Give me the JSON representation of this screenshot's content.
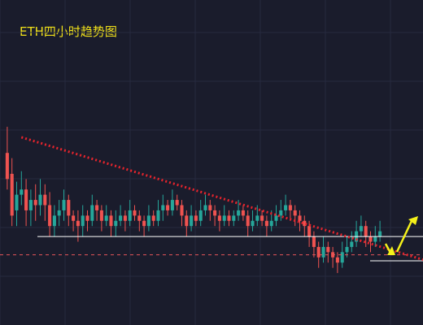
{
  "chart_data": {
    "type": "candlestick",
    "title": "ETH四小时趋势图",
    "xlabel": "",
    "ylabel": "",
    "grid": true,
    "colors": {
      "background": "#1a1c2c",
      "grid": "#262a3e",
      "up": "#26a69a",
      "down": "#ef5350",
      "trendline": "#e8242c",
      "level": "#ffffff",
      "dashed_level": "#e8555a",
      "arrow": "#f5f11a",
      "title": "#f2e21a"
    },
    "candles": [
      [
        0,
        290,
        280,
        300,
        276
      ],
      [
        1,
        282,
        266,
        288,
        262
      ],
      [
        2,
        268,
        274,
        279,
        262
      ],
      [
        3,
        274,
        276,
        283,
        270
      ],
      [
        4,
        276,
        268,
        280,
        262
      ],
      [
        5,
        268,
        272,
        276,
        262
      ],
      [
        6,
        272,
        270,
        278,
        264
      ],
      [
        7,
        270,
        274,
        280,
        266
      ],
      [
        8,
        274,
        270,
        278,
        264
      ],
      [
        9,
        270,
        262,
        275,
        258
      ],
      [
        10,
        262,
        266,
        270,
        258
      ],
      [
        11,
        266,
        268,
        272,
        262
      ],
      [
        12,
        268,
        272,
        276,
        264
      ],
      [
        13,
        272,
        266,
        274,
        262
      ],
      [
        14,
        266,
        264,
        268,
        260
      ],
      [
        15,
        264,
        262,
        268,
        256
      ],
      [
        16,
        262,
        266,
        270,
        258
      ],
      [
        17,
        266,
        264,
        268,
        260
      ],
      [
        18,
        264,
        270,
        274,
        262
      ],
      [
        19,
        270,
        268,
        272,
        264
      ],
      [
        20,
        268,
        264,
        270,
        260
      ],
      [
        21,
        264,
        266,
        270,
        262
      ],
      [
        22,
        266,
        262,
        268,
        258
      ],
      [
        23,
        262,
        264,
        268,
        258
      ],
      [
        24,
        264,
        266,
        270,
        262
      ],
      [
        25,
        266,
        264,
        268,
        260
      ],
      [
        26,
        264,
        268,
        272,
        262
      ],
      [
        27,
        268,
        266,
        270,
        264
      ],
      [
        28,
        266,
        264,
        268,
        260
      ],
      [
        29,
        264,
        262,
        266,
        258
      ],
      [
        30,
        262,
        266,
        270,
        260
      ],
      [
        31,
        266,
        264,
        268,
        262
      ],
      [
        32,
        264,
        268,
        272,
        262
      ],
      [
        33,
        268,
        270,
        274,
        264
      ],
      [
        34,
        270,
        268,
        272,
        266
      ],
      [
        35,
        268,
        272,
        276,
        266
      ],
      [
        36,
        272,
        270,
        274,
        268
      ],
      [
        37,
        270,
        266,
        272,
        262
      ],
      [
        38,
        266,
        262,
        268,
        258
      ],
      [
        39,
        262,
        266,
        270,
        260
      ],
      [
        40,
        266,
        264,
        268,
        262
      ],
      [
        41,
        264,
        268,
        272,
        262
      ],
      [
        42,
        268,
        270,
        274,
        266
      ],
      [
        43,
        270,
        268,
        272,
        264
      ],
      [
        44,
        268,
        266,
        270,
        262
      ],
      [
        45,
        266,
        264,
        268,
        260
      ],
      [
        46,
        264,
        266,
        270,
        262
      ],
      [
        47,
        266,
        264,
        268,
        262
      ],
      [
        48,
        264,
        266,
        268,
        262
      ],
      [
        49,
        266,
        268,
        272,
        264
      ],
      [
        50,
        268,
        266,
        270,
        264
      ],
      [
        51,
        266,
        262,
        268,
        258
      ],
      [
        52,
        262,
        264,
        268,
        260
      ],
      [
        53,
        264,
        266,
        270,
        262
      ],
      [
        54,
        266,
        264,
        268,
        262
      ],
      [
        55,
        264,
        262,
        266,
        258
      ],
      [
        56,
        262,
        264,
        268,
        260
      ],
      [
        57,
        264,
        266,
        270,
        262
      ],
      [
        58,
        266,
        268,
        272,
        264
      ],
      [
        59,
        268,
        270,
        274,
        266
      ],
      [
        60,
        270,
        268,
        272,
        264
      ],
      [
        61,
        268,
        266,
        270,
        262
      ],
      [
        62,
        266,
        264,
        268,
        260
      ],
      [
        63,
        264,
        262,
        266,
        258
      ],
      [
        64,
        262,
        258,
        264,
        254
      ],
      [
        65,
        258,
        254,
        260,
        250
      ],
      [
        66,
        254,
        250,
        256,
        246
      ],
      [
        67,
        250,
        254,
        258,
        248
      ],
      [
        68,
        254,
        252,
        256,
        248
      ],
      [
        69,
        252,
        250,
        254,
        246
      ],
      [
        70,
        250,
        248,
        252,
        244
      ],
      [
        71,
        248,
        252,
        256,
        246
      ],
      [
        72,
        252,
        254,
        258,
        250
      ],
      [
        73,
        254,
        256,
        260,
        252
      ],
      [
        74,
        256,
        260,
        264,
        254
      ],
      [
        75,
        260,
        262,
        266,
        258
      ],
      [
        76,
        262,
        258,
        264,
        254
      ],
      [
        77,
        258,
        256,
        260,
        252
      ],
      [
        78,
        256,
        258,
        262,
        254
      ],
      [
        79,
        258,
        260,
        264,
        256
      ]
    ],
    "annotations": {
      "trendline_from": [
        3,
        296
      ],
      "trendline_to": [
        79,
        246
      ],
      "resistance_level": 258,
      "dashed_level": 251
    }
  }
}
